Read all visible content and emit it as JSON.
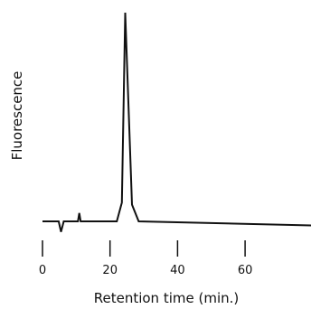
{
  "chart_data": {
    "type": "line",
    "xlabel": "Retention time (min.)",
    "ylabel": "Fluorescence",
    "xlim": [
      0,
      80
    ],
    "ylim": [
      0,
      100
    ],
    "grid": false,
    "y_ticks_shown": false,
    "x_ticks": [
      0,
      20,
      40,
      60
    ],
    "x_tick_labels": [
      "0",
      "20",
      "40",
      "60"
    ],
    "color": "#111111",
    "series": [
      {
        "x": [
          0,
          4.8,
          5.5,
          6.3,
          10.5,
          10.9,
          11.3,
          22,
          23.5,
          24.5,
          26.5,
          28.5,
          80
        ],
        "y": [
          0,
          0,
          -5,
          0,
          0,
          4,
          0,
          0,
          9,
          100,
          8,
          0,
          -2
        ]
      }
    ]
  }
}
